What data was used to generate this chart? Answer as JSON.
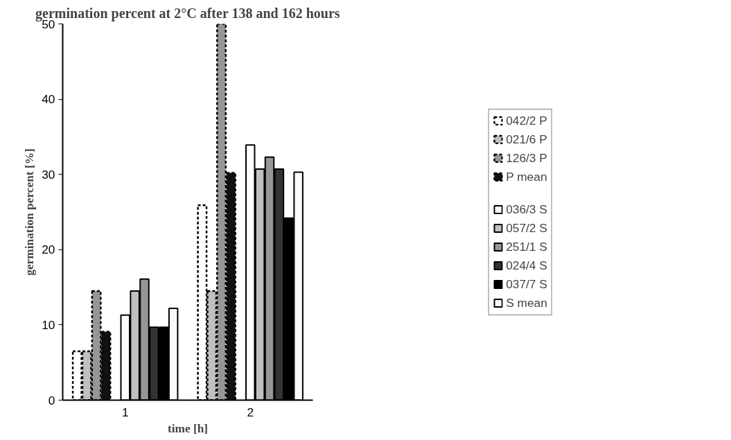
{
  "chart_data": {
    "type": "bar",
    "title": "germination percent at 2°C after 138 and 162 hours",
    "xlabel": "time [h]",
    "ylabel": "germination percent [%]",
    "categories": [
      "1",
      "2"
    ],
    "ylim": [
      0,
      50
    ],
    "yticks": [
      0,
      10,
      20,
      30,
      40,
      50
    ],
    "grid": false,
    "legend": "right",
    "series": [
      {
        "name": "042/2 P",
        "color": "#ffffff",
        "line_style": "dashed",
        "values": [
          6.5,
          25.9
        ]
      },
      {
        "name": "021/6 P",
        "color": "#c0c0c0",
        "line_style": "dashed",
        "values": [
          6.5,
          14.5
        ]
      },
      {
        "name": "126/3 P",
        "color": "#969696",
        "line_style": "dashed",
        "values": [
          14.5,
          50.0
        ]
      },
      {
        "name": "P mean",
        "color": "#111111",
        "line_style": "dashed",
        "values": [
          9.1,
          30.2
        ]
      },
      {
        "values": [
          null,
          null
        ]
      },
      {
        "name": "036/3 S",
        "color": "#ffffff",
        "values": [
          11.3,
          33.9
        ]
      },
      {
        "name": "057/2 S",
        "color": "#c0c0c0",
        "values": [
          14.5,
          30.7
        ]
      },
      {
        "name": "251/1 S",
        "color": "#969696",
        "values": [
          16.1,
          32.3
        ]
      },
      {
        "name": "024/4 S",
        "color": "#333333",
        "values": [
          9.7,
          30.7
        ]
      },
      {
        "name": "037/7 S",
        "color": "#000000",
        "values": [
          9.7,
          24.2
        ]
      },
      {
        "name": "S mean",
        "color": "#fafafa",
        "values": [
          12.2,
          30.3
        ]
      }
    ]
  }
}
